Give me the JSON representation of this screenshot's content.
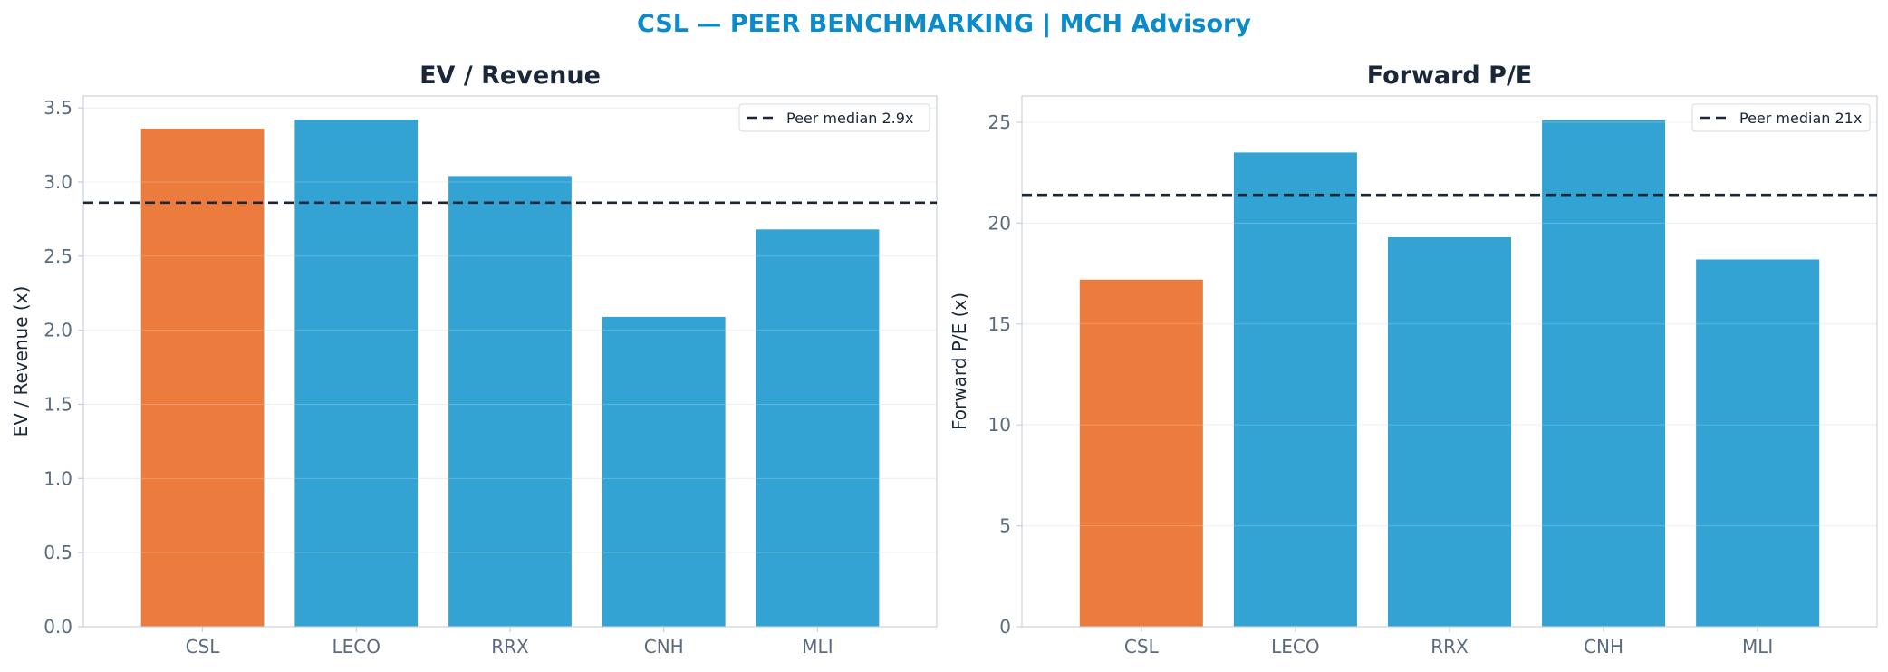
{
  "suptitle": "CSL — PEER BENCHMARKING | MCH Advisory",
  "colors": {
    "title": "#0b8bc9",
    "highlight": "#ec7b3e",
    "peer": "#33a3d4",
    "median_line": "#1a2738",
    "grid": "#e6ebf0",
    "axis": "#c9d1da"
  },
  "chart_data": [
    {
      "type": "bar",
      "title": "EV / Revenue",
      "ylabel": "EV / Revenue (x)",
      "categories": [
        "CSL",
        "LECO",
        "RRX",
        "CNH",
        "MLI"
      ],
      "values": [
        3.36,
        3.42,
        3.04,
        2.09,
        2.68
      ],
      "highlight": "CSL",
      "ylim": [
        0,
        3.58
      ],
      "yticks": [
        0.0,
        0.5,
        1.0,
        1.5,
        2.0,
        2.5,
        3.0,
        3.5
      ],
      "ytick_labels": [
        "0.0",
        "0.5",
        "1.0",
        "1.5",
        "2.0",
        "2.5",
        "3.0",
        "3.5"
      ],
      "reference_line": {
        "value": 2.86,
        "label": "Peer median 2.9x",
        "style": "dashed"
      },
      "legend_position": "top-right",
      "grid": true
    },
    {
      "type": "bar",
      "title": "Forward P/E",
      "ylabel": "Forward P/E (x)",
      "categories": [
        "CSL",
        "LECO",
        "RRX",
        "CNH",
        "MLI"
      ],
      "values": [
        17.2,
        23.5,
        19.3,
        25.1,
        18.2
      ],
      "highlight": "CSL",
      "ylim": [
        0,
        26.3
      ],
      "yticks": [
        0,
        5,
        10,
        15,
        20,
        25
      ],
      "ytick_labels": [
        "0",
        "5",
        "10",
        "15",
        "20",
        "25"
      ],
      "reference_line": {
        "value": 21.4,
        "label": "Peer median 21x",
        "style": "dashed"
      },
      "legend_position": "top-right",
      "grid": true
    }
  ]
}
